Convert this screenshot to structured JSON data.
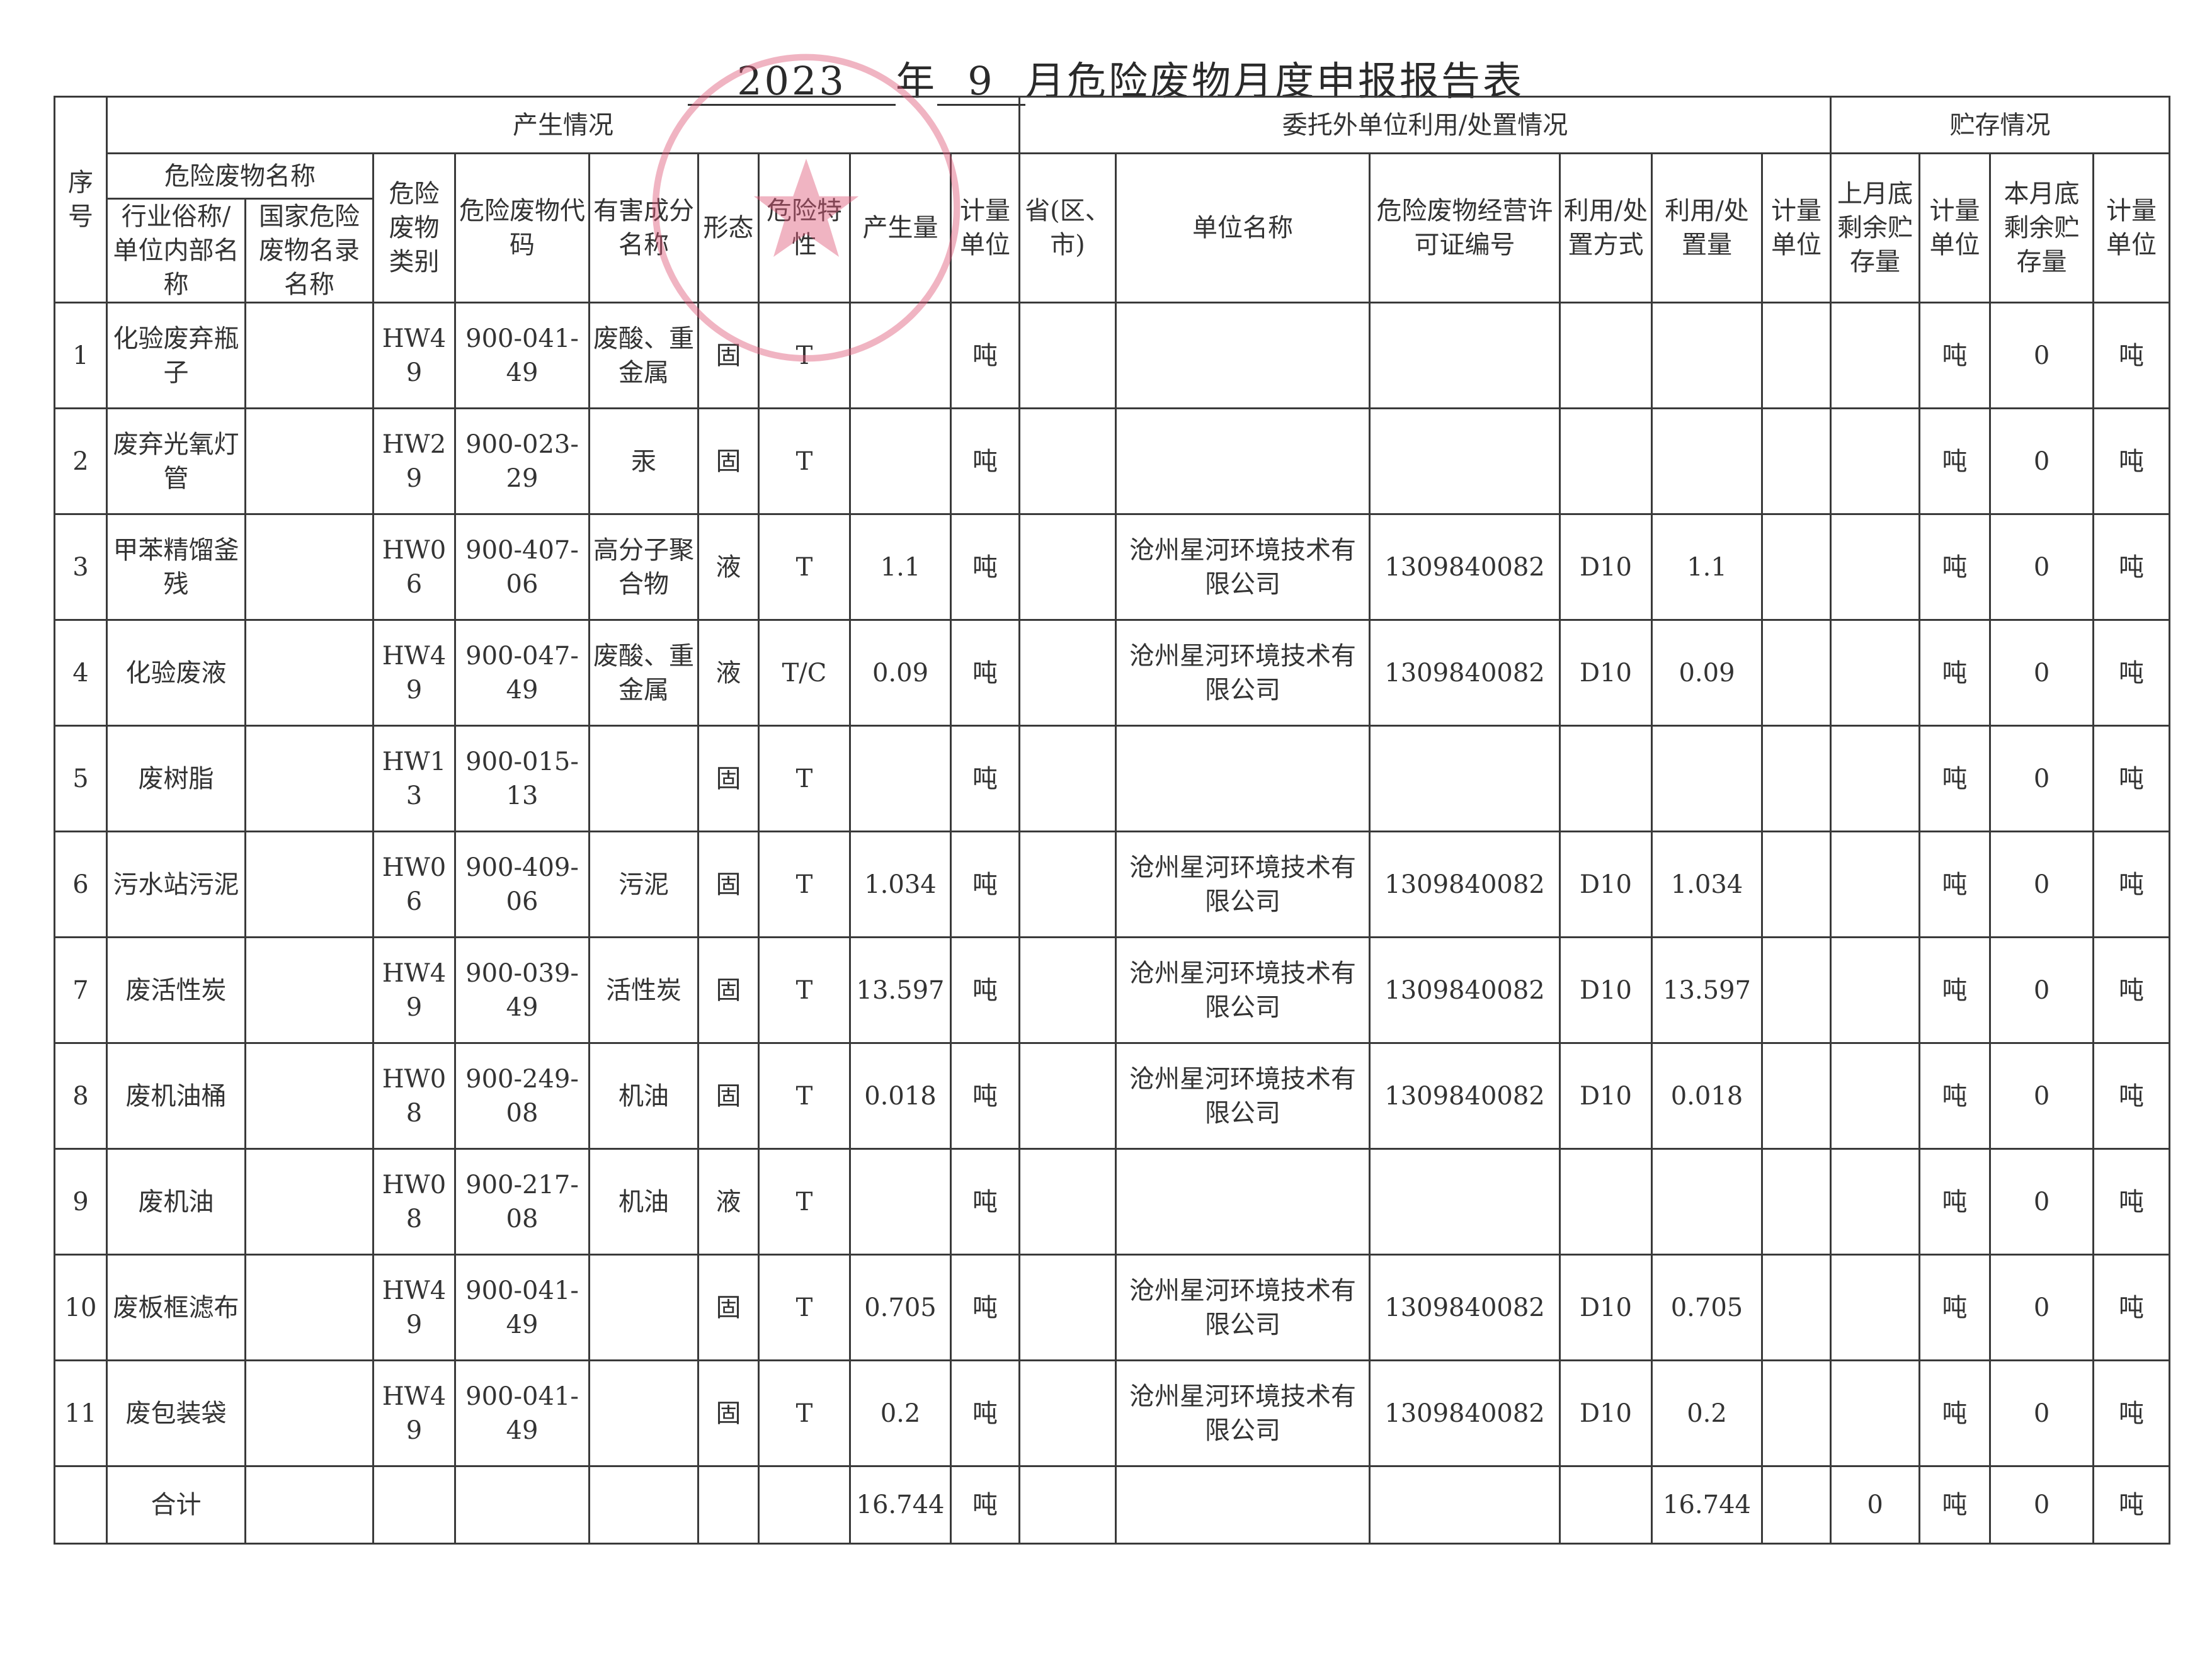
{
  "title": {
    "year": "2023",
    "year_suffix": "年",
    "month": "9",
    "rest": "月危险废物月度申报报告表"
  },
  "stamp_color": "#e05a7a",
  "headers": {
    "seq": "序号",
    "production": "产生情况",
    "entrusted": "委托外单位利用/处置情况",
    "storage": "贮存情况",
    "waste_name": "危险废物名称",
    "industry_name": "行业俗称/单位内部名称",
    "national_name": "国家危险废物名录名称",
    "category": "危险废物类别",
    "code": "危险废物代码",
    "harmful": "有害成分名称",
    "form": "形态",
    "hazard": "危险特性",
    "amount": "产生量",
    "unit": "计量单位",
    "province": "省(区、市)",
    "company": "单位名称",
    "license": "危险废物经营许可证编号",
    "method": "利用/处置方式",
    "disposed": "利用/处置量",
    "unit2": "计量单位",
    "last_month": "上月底剩余贮存量",
    "unit3": "计量单位",
    "this_month": "本月底剩余贮存量",
    "unit4": "计量单位"
  },
  "rows": [
    {
      "seq": "1",
      "name": "化验废弃瓶子",
      "national": "",
      "category": "HW49",
      "code": "900-041-49",
      "harmful": "废酸、重金属",
      "form": "固",
      "hazard": "T",
      "amount": "",
      "unit": "吨",
      "province": "",
      "company": "",
      "license": "",
      "method": "",
      "disposed": "",
      "unit2": "",
      "last": "",
      "unit3": "吨",
      "remain": "0",
      "unit4": "吨"
    },
    {
      "seq": "2",
      "name": "废弃光氧灯管",
      "national": "",
      "category": "HW29",
      "code": "900-023-29",
      "harmful": "汞",
      "form": "固",
      "hazard": "T",
      "amount": "",
      "unit": "吨",
      "province": "",
      "company": "",
      "license": "",
      "method": "",
      "disposed": "",
      "unit2": "",
      "last": "",
      "unit3": "吨",
      "remain": "0",
      "unit4": "吨"
    },
    {
      "seq": "3",
      "name": "甲苯精馏釜残",
      "national": "",
      "category": "HW06",
      "code": "900-407-06",
      "harmful": "高分子聚合物",
      "form": "液",
      "hazard": "T",
      "amount": "1.1",
      "unit": "吨",
      "province": "",
      "company": "沧州星河环境技术有限公司",
      "license": "1309840082",
      "method": "D10",
      "disposed": "1.1",
      "unit2": "",
      "last": "",
      "unit3": "吨",
      "remain": "0",
      "unit4": "吨"
    },
    {
      "seq": "4",
      "name": "化验废液",
      "national": "",
      "category": "HW49",
      "code": "900-047-49",
      "harmful": "废酸、重金属",
      "form": "液",
      "hazard": "T/C",
      "amount": "0.09",
      "unit": "吨",
      "province": "",
      "company": "沧州星河环境技术有限公司",
      "license": "1309840082",
      "method": "D10",
      "disposed": "0.09",
      "unit2": "",
      "last": "",
      "unit3": "吨",
      "remain": "0",
      "unit4": "吨"
    },
    {
      "seq": "5",
      "name": "废树脂",
      "national": "",
      "category": "HW13",
      "code": "900-015-13",
      "harmful": "",
      "form": "固",
      "hazard": "T",
      "amount": "",
      "unit": "吨",
      "province": "",
      "company": "",
      "license": "",
      "method": "",
      "disposed": "",
      "unit2": "",
      "last": "",
      "unit3": "吨",
      "remain": "0",
      "unit4": "吨"
    },
    {
      "seq": "6",
      "name": "污水站污泥",
      "national": "",
      "category": "HW06",
      "code": "900-409-06",
      "harmful": "污泥",
      "form": "固",
      "hazard": "T",
      "amount": "1.034",
      "unit": "吨",
      "province": "",
      "company": "沧州星河环境技术有限公司",
      "license": "1309840082",
      "method": "D10",
      "disposed": "1.034",
      "unit2": "",
      "last": "",
      "unit3": "吨",
      "remain": "0",
      "unit4": "吨"
    },
    {
      "seq": "7",
      "name": "废活性炭",
      "national": "",
      "category": "HW49",
      "code": "900-039-49",
      "harmful": "活性炭",
      "form": "固",
      "hazard": "T",
      "amount": "13.597",
      "unit": "吨",
      "province": "",
      "company": "沧州星河环境技术有限公司",
      "license": "1309840082",
      "method": "D10",
      "disposed": "13.597",
      "unit2": "",
      "last": "",
      "unit3": "吨",
      "remain": "0",
      "unit4": "吨"
    },
    {
      "seq": "8",
      "name": "废机油桶",
      "national": "",
      "category": "HW08",
      "code": "900-249-08",
      "harmful": "机油",
      "form": "固",
      "hazard": "T",
      "amount": "0.018",
      "unit": "吨",
      "province": "",
      "company": "沧州星河环境技术有限公司",
      "license": "1309840082",
      "method": "D10",
      "disposed": "0.018",
      "unit2": "",
      "last": "",
      "unit3": "吨",
      "remain": "0",
      "unit4": "吨"
    },
    {
      "seq": "9",
      "name": "废机油",
      "national": "",
      "category": "HW08",
      "code": "900-217-08",
      "harmful": "机油",
      "form": "液",
      "hazard": "T",
      "amount": "",
      "unit": "吨",
      "province": "",
      "company": "",
      "license": "",
      "method": "",
      "disposed": "",
      "unit2": "",
      "last": "",
      "unit3": "吨",
      "remain": "0",
      "unit4": "吨"
    },
    {
      "seq": "10",
      "name": "废板框滤布",
      "national": "",
      "category": "HW49",
      "code": "900-041-49",
      "harmful": "",
      "form": "固",
      "hazard": "T",
      "amount": "0.705",
      "unit": "吨",
      "province": "",
      "company": "沧州星河环境技术有限公司",
      "license": "1309840082",
      "method": "D10",
      "disposed": "0.705",
      "unit2": "",
      "last": "",
      "unit3": "吨",
      "remain": "0",
      "unit4": "吨"
    },
    {
      "seq": "11",
      "name": "废包装袋",
      "national": "",
      "category": "HW49",
      "code": "900-041-49",
      "harmful": "",
      "form": "固",
      "hazard": "T",
      "amount": "0.2",
      "unit": "吨",
      "province": "",
      "company": "沧州星河环境技术有限公司",
      "license": "1309840082",
      "method": "D10",
      "disposed": "0.2",
      "unit2": "",
      "last": "",
      "unit3": "吨",
      "remain": "0",
      "unit4": "吨"
    }
  ],
  "total": {
    "label": "合计",
    "amount": "16.744",
    "unit": "吨",
    "disposed": "16.744",
    "last": "0",
    "unit3": "吨",
    "remain": "0",
    "unit4": "吨"
  }
}
